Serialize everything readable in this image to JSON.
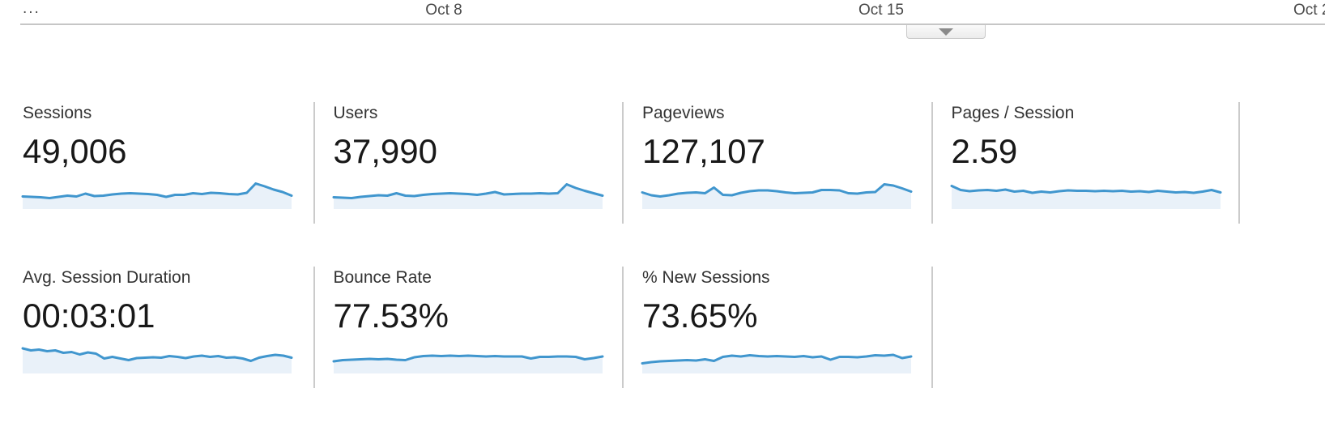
{
  "timeline": {
    "ticks": {
      "truncated_left": "...",
      "t1": "Oct 8",
      "t2": "Oct 15",
      "truncated_right": "Oct 2"
    },
    "collapse_button_icon": "triangle-down"
  },
  "colors": {
    "spark_line": "#4096ce",
    "spark_fill": "#e9f1f9",
    "divider": "#cbcbcb",
    "axis_line": "#c6c6c6",
    "label_text": "#333333",
    "value_text": "#181818"
  },
  "cards": {
    "row1": [
      {
        "label": "Sessions",
        "value": "49,006",
        "spark_y": [
          25.5,
          26,
          26.5,
          27.5,
          26,
          24.5,
          25.5,
          22,
          25,
          24.5,
          23,
          22,
          21.5,
          22,
          22.5,
          23.5,
          26,
          23.5,
          23.5,
          21.5,
          22.5,
          21,
          21.5,
          22.5,
          23,
          21,
          9.5,
          13,
          17,
          20,
          24.5
        ]
      },
      {
        "label": "Users",
        "value": "37,990",
        "spark_y": [
          26.5,
          27,
          27.5,
          26,
          25,
          24,
          24.5,
          21.5,
          24.5,
          25,
          23.5,
          22.5,
          22,
          21.5,
          22,
          22.5,
          23.5,
          22,
          20,
          23,
          22.5,
          22,
          22,
          21.5,
          22,
          21.5,
          10.5,
          15,
          18.5,
          21.5,
          24.5
        ]
      },
      {
        "label": "Pageviews",
        "value": "127,107",
        "spark_y": [
          20.5,
          24,
          25.5,
          24,
          22,
          21,
          20.5,
          21.5,
          14.5,
          23.5,
          24,
          21,
          19,
          18,
          18,
          19,
          20.5,
          21.5,
          21,
          20.5,
          17.5,
          17.5,
          18,
          21.5,
          22,
          20.5,
          20,
          10.5,
          12,
          15.5,
          19.5
        ]
      },
      {
        "label": "Pages / Session",
        "value": "2.59",
        "spark_y": [
          12.5,
          17.5,
          19,
          18,
          17.5,
          18.5,
          17,
          19.5,
          18.5,
          21,
          19.5,
          20.5,
          19,
          18,
          18.5,
          18.5,
          19,
          18.5,
          19,
          18.5,
          19.5,
          19,
          20,
          18.5,
          19.5,
          20.5,
          20,
          21,
          19.5,
          17.5,
          20.5
        ]
      }
    ],
    "row2": [
      {
        "label": "Avg. Session Duration",
        "value": "00:03:01",
        "spark_y": [
          10,
          12.5,
          11.5,
          13.5,
          12.5,
          15.5,
          14.5,
          17.5,
          15,
          16.5,
          22.5,
          20.5,
          22.5,
          24.5,
          22,
          21.5,
          21,
          21.5,
          19.5,
          20.5,
          22,
          20,
          19,
          20.5,
          19.5,
          21.5,
          21,
          22.5,
          25.5,
          21.5,
          19.5,
          18,
          19,
          21.5
        ]
      },
      {
        "label": "Bounce Rate",
        "value": "77.53%",
        "spark_y": [
          26,
          24.5,
          24,
          23.5,
          23,
          23.5,
          23,
          24,
          24.5,
          21,
          19.5,
          19,
          19.5,
          19,
          19.5,
          19,
          19.5,
          20,
          19.5,
          20,
          20,
          20,
          22.5,
          20.5,
          20.5,
          20,
          20,
          20.5,
          23.5,
          22,
          20
        ]
      },
      {
        "label": "% New Sessions",
        "value": "73.65%",
        "spark_y": [
          28.5,
          27,
          26,
          25.5,
          25,
          24.5,
          25,
          23.5,
          25.5,
          20.5,
          19,
          20,
          18.5,
          19.5,
          20,
          19.5,
          20,
          20.5,
          19.5,
          21,
          20,
          24,
          20.5,
          20.5,
          21,
          20,
          18.5,
          19,
          18,
          22,
          20
        ]
      }
    ]
  }
}
